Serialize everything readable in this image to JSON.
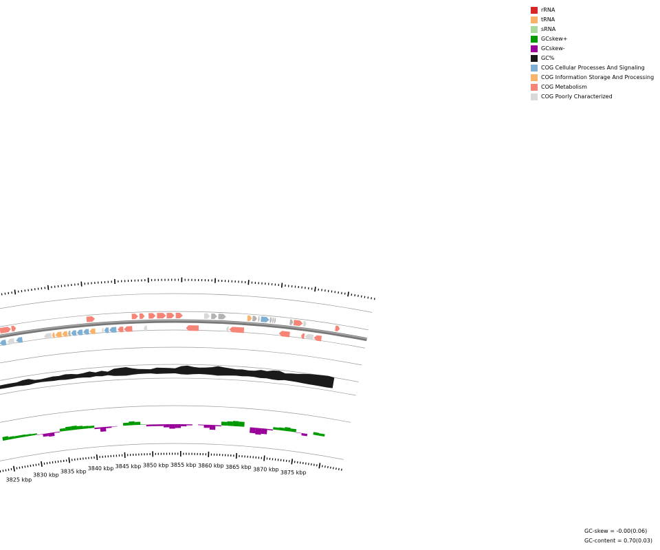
{
  "legend": {
    "items": [
      {
        "label": "rRNA",
        "color": "#d62728"
      },
      {
        "label": "tRNA",
        "color": "#f7b267"
      },
      {
        "label": "sRNA",
        "color": "#a6d99b"
      },
      {
        "label": "GCskew+",
        "color": "#009a00"
      },
      {
        "label": "GCskew-",
        "color": "#990099"
      },
      {
        "label": "GC%",
        "color": "#1a1a1a"
      },
      {
        "label": "COG Cellular Processes And Signaling",
        "color": "#7fb0d4"
      },
      {
        "label": "COG Information Storage And Processing",
        "color": "#f9b36b"
      },
      {
        "label": "COG Metabolism",
        "color": "#f78577"
      },
      {
        "label": "COG Poorly Characterized",
        "color": "#d9d9d9"
      }
    ]
  },
  "axis": {
    "ticks": [
      "3825 kbp",
      "3830 kbp",
      "3835 kbp",
      "3840 kbp",
      "3845 kbp",
      "3850 kbp",
      "3855 kbp",
      "3860 kbp",
      "3865 kbp",
      "3870 kbp",
      "3875 kbp"
    ]
  },
  "stats": {
    "gc_skew": "GC-skew = -0.00(0.06)",
    "gc_content": "GC-content = 0.70(0.03)"
  },
  "colors": {
    "backbone": "#777777",
    "gc_content": "#1a1a1a",
    "skew_pos": "#009a00",
    "skew_neg": "#990099",
    "cog_cellular": "#7fb0d4",
    "cog_info": "#f9b36b",
    "cog_metabolism": "#f78577",
    "cog_poor": "#d9d9d9",
    "unknown": "#b3b3b3"
  },
  "genes": {
    "forward": [
      {
        "start": 3825.9,
        "end": 3826.2,
        "cog": "metabolism"
      },
      {
        "start": 3826.3,
        "end": 3826.6,
        "cog": "metabolism"
      },
      {
        "start": 3826.8,
        "end": 3828.5,
        "cog": "metabolism"
      },
      {
        "start": 3828.6,
        "end": 3829.3,
        "cog": "metabolism"
      },
      {
        "start": 3840.3,
        "end": 3841.6,
        "cog": "metabolism"
      },
      {
        "start": 3847.3,
        "end": 3848.3,
        "cog": "metabolism"
      },
      {
        "start": 3848.5,
        "end": 3849.3,
        "cog": "metabolism"
      },
      {
        "start": 3849.9,
        "end": 3851.0,
        "cog": "metabolism"
      },
      {
        "start": 3851.2,
        "end": 3852.6,
        "cog": "metabolism"
      },
      {
        "start": 3852.7,
        "end": 3853.9,
        "cog": "metabolism"
      },
      {
        "start": 3854.1,
        "end": 3855.2,
        "cog": "metabolism"
      },
      {
        "start": 3858.5,
        "end": 3859.4,
        "cog": "poor"
      },
      {
        "start": 3859.6,
        "end": 3860.5,
        "cog": "unknown"
      },
      {
        "start": 3860.7,
        "end": 3861.9,
        "cog": "unknown"
      },
      {
        "start": 3865.2,
        "end": 3865.9,
        "cog": "info"
      },
      {
        "start": 3866.0,
        "end": 3866.7,
        "cog": "unknown"
      },
      {
        "start": 3866.9,
        "end": 3867.1,
        "cog": "unknown"
      },
      {
        "start": 3867.3,
        "end": 3868.6,
        "cog": "cellular"
      },
      {
        "start": 3868.7,
        "end": 3869.0,
        "cog": "unknown"
      },
      {
        "start": 3869.1,
        "end": 3869.3,
        "cog": "unknown"
      },
      {
        "start": 3869.4,
        "end": 3869.6,
        "cog": "unknown"
      },
      {
        "start": 3871.8,
        "end": 3872.3,
        "cog": "unknown"
      },
      {
        "start": 3872.4,
        "end": 3873.8,
        "cog": "metabolism"
      },
      {
        "start": 3873.9,
        "end": 3874.4,
        "cog": "poor"
      },
      {
        "start": 3878.9,
        "end": 3879.6,
        "cog": "metabolism"
      }
    ],
    "reverse": [
      {
        "start": 3825.0,
        "end": 3826.2,
        "cog": "metabolism"
      },
      {
        "start": 3826.4,
        "end": 3827.4,
        "cog": "cellular"
      },
      {
        "start": 3827.6,
        "end": 3828.7,
        "cog": "poor"
      },
      {
        "start": 3829.0,
        "end": 3830.0,
        "cog": "cellular"
      },
      {
        "start": 3833.4,
        "end": 3834.6,
        "cog": "poor"
      },
      {
        "start": 3834.7,
        "end": 3835.1,
        "cog": "info"
      },
      {
        "start": 3835.2,
        "end": 3836.2,
        "cog": "info"
      },
      {
        "start": 3836.3,
        "end": 3837.1,
        "cog": "info"
      },
      {
        "start": 3837.2,
        "end": 3837.6,
        "cog": "unknown"
      },
      {
        "start": 3837.7,
        "end": 3838.5,
        "cog": "cellular"
      },
      {
        "start": 3838.6,
        "end": 3839.5,
        "cog": "cellular"
      },
      {
        "start": 3839.6,
        "end": 3840.5,
        "cog": "cellular"
      },
      {
        "start": 3840.6,
        "end": 3841.5,
        "cog": "info"
      },
      {
        "start": 3842.5,
        "end": 3842.8,
        "cog": "poor"
      },
      {
        "start": 3842.9,
        "end": 3843.6,
        "cog": "cellular"
      },
      {
        "start": 3843.7,
        "end": 3844.8,
        "cog": "cellular"
      },
      {
        "start": 3845.0,
        "end": 3845.9,
        "cog": "metabolism"
      },
      {
        "start": 3846.0,
        "end": 3847.3,
        "cog": "metabolism"
      },
      {
        "start": 3849.1,
        "end": 3849.6,
        "cog": "poor"
      },
      {
        "start": 3855.7,
        "end": 3857.7,
        "cog": "metabolism"
      },
      {
        "start": 3862.0,
        "end": 3862.4,
        "cog": "poor"
      },
      {
        "start": 3862.5,
        "end": 3864.8,
        "cog": "metabolism"
      },
      {
        "start": 3870.3,
        "end": 3872.0,
        "cog": "metabolism"
      },
      {
        "start": 3873.8,
        "end": 3874.3,
        "cog": "metabolism"
      },
      {
        "start": 3874.4,
        "end": 3875.7,
        "cog": "poor"
      },
      {
        "start": 3875.8,
        "end": 3877.0,
        "cog": "metabolism"
      }
    ]
  },
  "gc_content_profile": {
    "kbp": [
      3824.0,
      3825.0,
      3826.0,
      3827.0,
      3828.0,
      3829.0,
      3830.0,
      3831.0,
      3832.0,
      3833.0,
      3834.0,
      3835.0,
      3836.0,
      3837.0,
      3838.0,
      3839.0,
      3840.0,
      3841.0,
      3842.0,
      3843.0,
      3844.0,
      3845.0,
      3846.0,
      3847.0,
      3848.0,
      3849.0,
      3850.0,
      3851.0,
      3852.0,
      3853.0,
      3854.0,
      3855.0,
      3856.0,
      3857.0,
      3858.0,
      3859.0,
      3860.0,
      3861.0,
      3862.0,
      3863.0,
      3864.0,
      3865.0,
      3866.0,
      3867.0,
      3868.0,
      3869.0,
      3870.0,
      3871.0,
      3872.0,
      3873.0,
      3874.0,
      3875.0,
      3876.0,
      3877.0,
      3878.0,
      3879.0,
      3880.0
    ],
    "value": [
      0.06,
      0.08,
      0.1,
      0.12,
      0.1,
      0.3,
      0.35,
      0.05,
      0.02,
      0.1,
      0.2,
      0.15,
      0.3,
      0.25,
      0.1,
      0.18,
      0.35,
      0.12,
      0.3,
      0.1,
      0.5,
      0.58,
      0.65,
      0.4,
      0.25,
      0.2,
      0.15,
      0.4,
      0.35,
      0.3,
      0.25,
      0.6,
      0.7,
      0.5,
      0.4,
      0.45,
      0.55,
      0.75,
      0.6,
      0.5,
      0.4,
      0.45,
      0.35,
      0.4,
      0.6,
      0.5,
      0.7,
      0.75,
      0.45,
      0.55,
      0.6,
      0.75,
      0.85,
      0.9,
      0.95,
      1.0,
      0.9
    ]
  },
  "gc_skew_profile": {
    "kbp": [
      3824.0,
      3825.0,
      3826.0,
      3827.0,
      3828.0,
      3829.0,
      3830.0,
      3831.0,
      3832.0,
      3833.0,
      3834.0,
      3835.0,
      3836.0,
      3837.0,
      3838.0,
      3839.0,
      3840.0,
      3841.0,
      3842.0,
      3843.0,
      3844.0,
      3845.0,
      3846.0,
      3847.0,
      3848.0,
      3849.0,
      3850.0,
      3851.0,
      3852.0,
      3853.0,
      3854.0,
      3855.0,
      3856.0,
      3857.0,
      3858.0,
      3859.0,
      3860.0,
      3861.0,
      3862.0,
      3863.0,
      3864.0,
      3865.0,
      3866.0,
      3867.0,
      3868.0,
      3869.0,
      3870.0,
      3871.0,
      3872.0,
      3873.0,
      3874.0,
      3875.0,
      3876.0,
      3877.0,
      3878.0,
      3879.0,
      3880.0
    ],
    "value": [
      0.6,
      0.45,
      0.3,
      0.35,
      0.3,
      0.25,
      0.2,
      -0.3,
      -0.55,
      -0.5,
      0.3,
      0.5,
      0.6,
      0.55,
      0.4,
      0.35,
      0.3,
      -0.7,
      -0.6,
      0.2,
      -0.3,
      0.3,
      0.5,
      0.6,
      0.3,
      -0.2,
      -0.3,
      -0.2,
      -0.3,
      -0.6,
      -0.7,
      -0.4,
      -0.2,
      -0.1,
      0.1,
      -0.3,
      -0.6,
      -0.8,
      0.5,
      0.6,
      0.7,
      0.8,
      0.6,
      -0.6,
      -1.0,
      -0.9,
      -0.7,
      0.4,
      0.3,
      0.5,
      0.6,
      0.3,
      -0.4,
      -0.3,
      0.3,
      0.5,
      0.2
    ]
  }
}
